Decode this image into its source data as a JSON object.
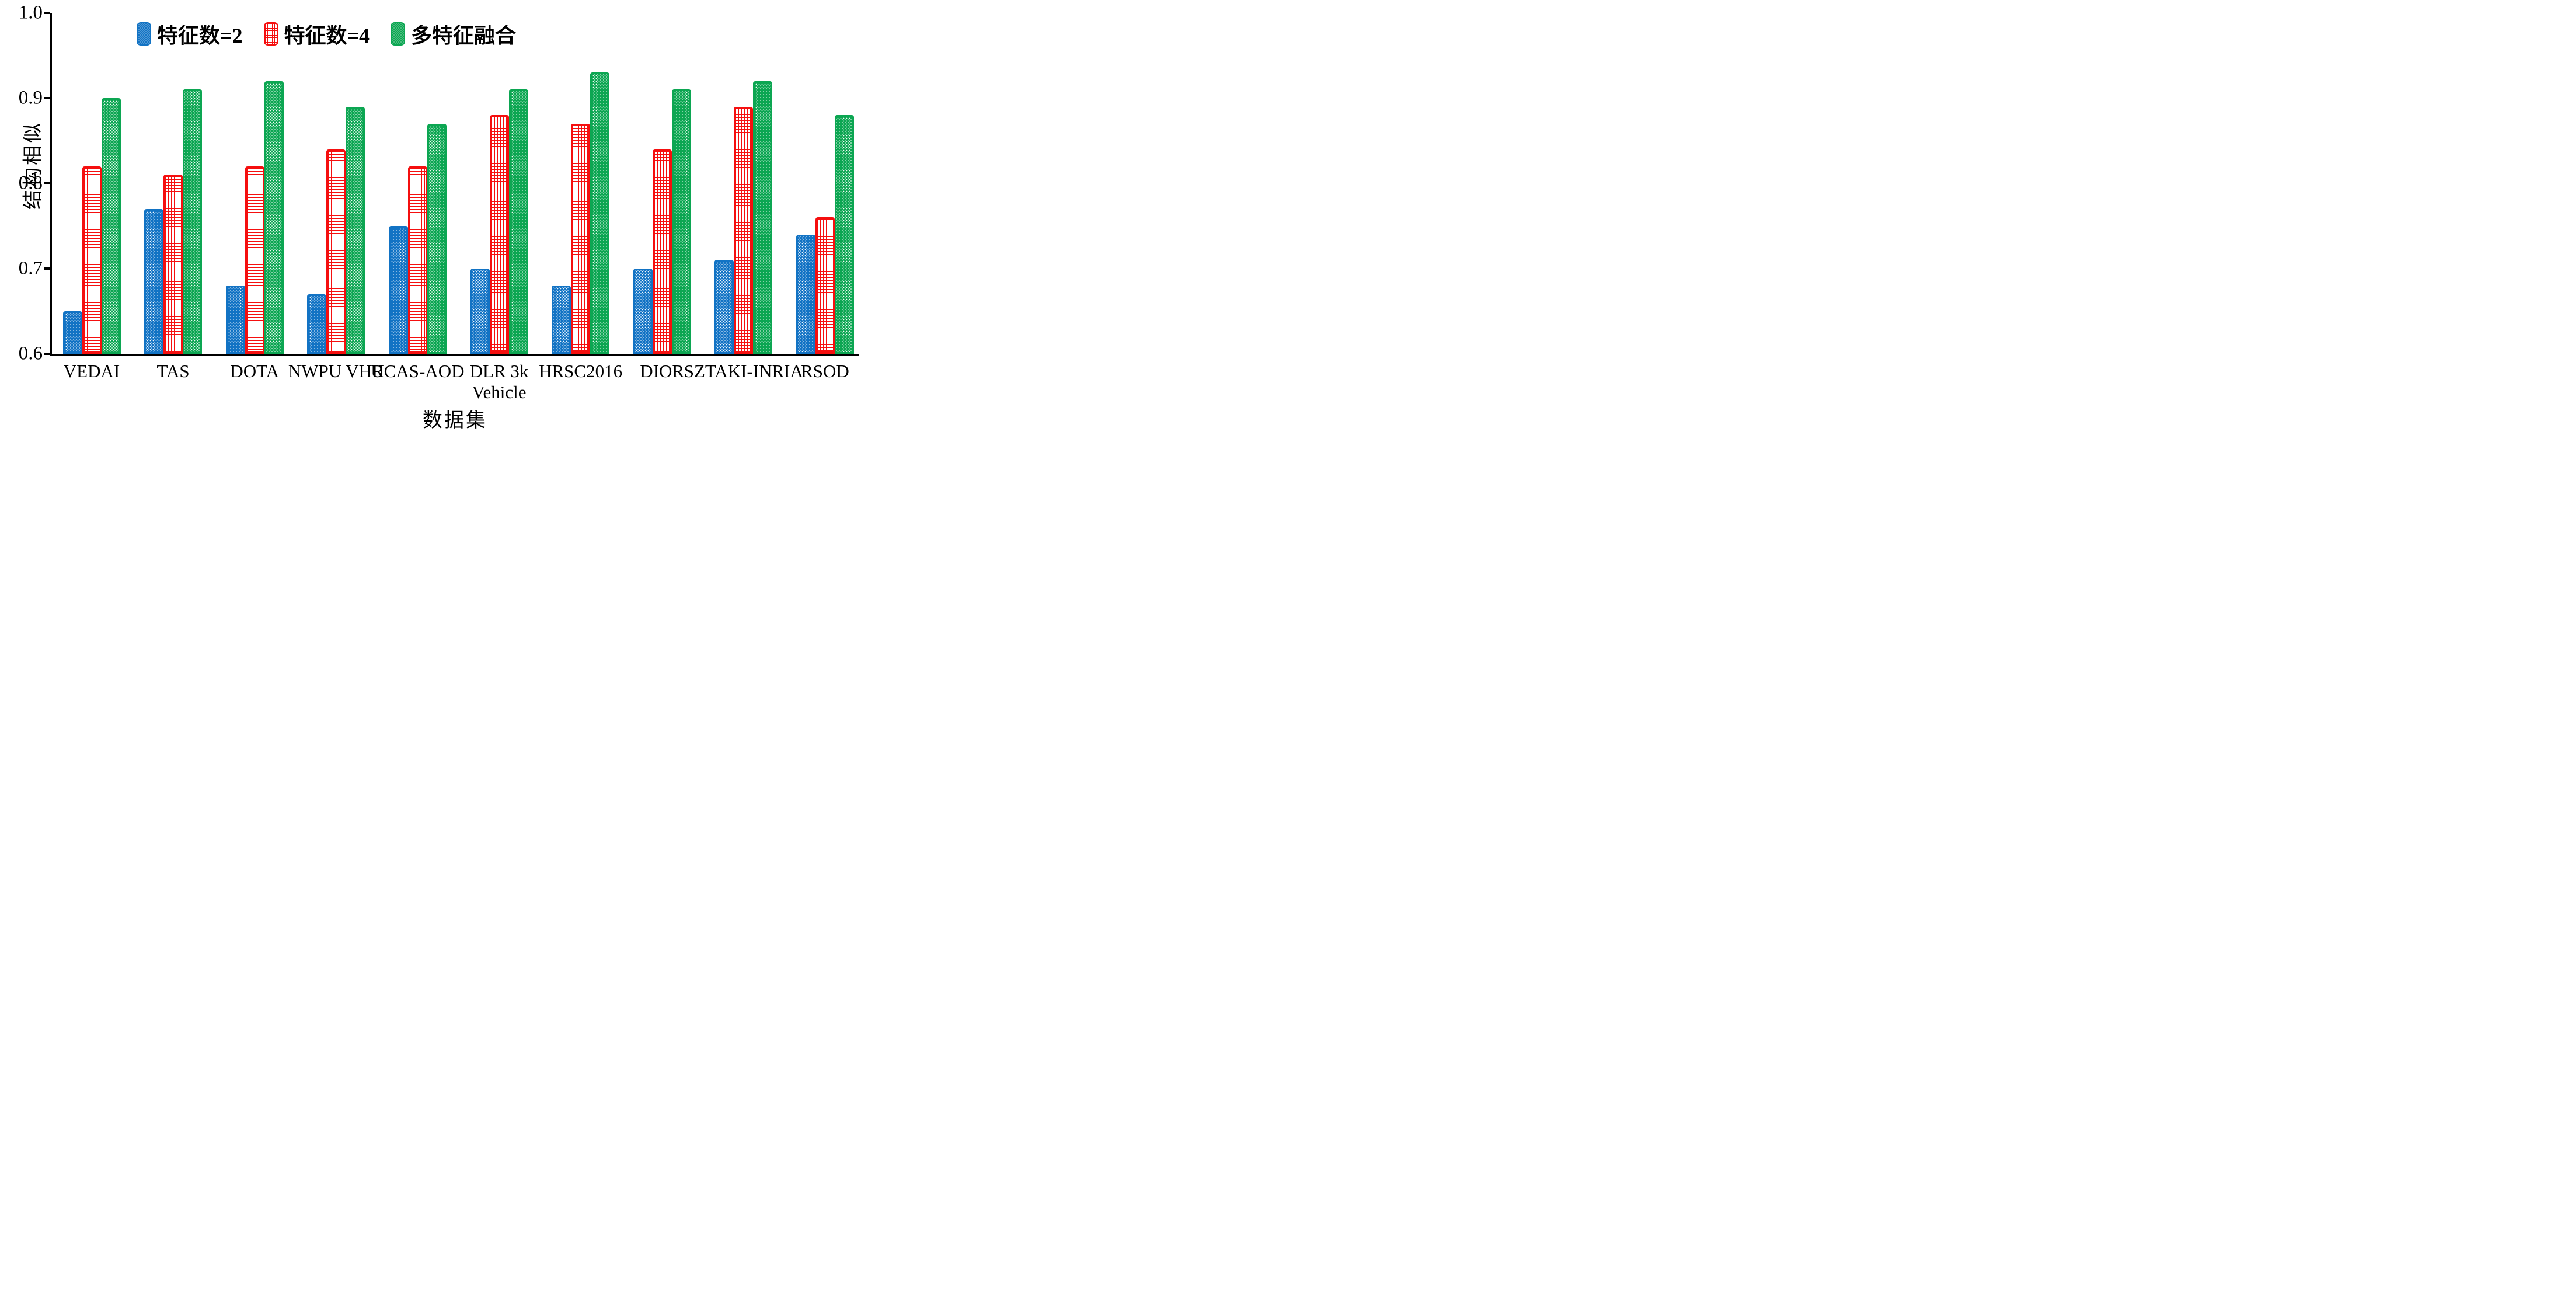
{
  "figure": {
    "background": "#ffffff",
    "colors": {
      "blue": "#1273C4",
      "red": "#F50F0F",
      "green": "#0CA652",
      "axis": "#000000"
    }
  },
  "chart_data": {
    "type": "bar",
    "title": "",
    "xlabel": "数据集",
    "ylabel": "结构相似",
    "ylim": [
      0.6,
      1.0
    ],
    "yticks": [
      "0.6",
      "0.7",
      "0.8",
      "0.9",
      "1.0"
    ],
    "grid": false,
    "legend_position": "top-center",
    "categories": [
      "VEDAI",
      "TAS",
      "DOTA",
      "NWPU VHR",
      "UCAS-AOD",
      "DLR 3k Vehicle",
      "HRSC2016",
      "DIOR",
      "SZTAKI-INRIA",
      "RSOD"
    ],
    "category_display_lines": [
      [
        "VEDAI"
      ],
      [
        "TAS"
      ],
      [
        "DOTA"
      ],
      [
        "NWPU VHR"
      ],
      [
        "UCAS-AOD"
      ],
      [
        "DLR 3k",
        "Vehicle"
      ],
      [
        "HRSC2016"
      ],
      [
        "DIOR"
      ],
      [
        "SZTAKI-INRIA"
      ],
      [
        "RSOD"
      ]
    ],
    "series": [
      {
        "name": "特征数=2",
        "style": "blue-dotted",
        "values": [
          0.65,
          0.77,
          0.68,
          0.67,
          0.75,
          0.7,
          0.68,
          0.7,
          0.71,
          0.74
        ]
      },
      {
        "name": "特征数=4",
        "style": "red-grid-hatch",
        "values": [
          0.82,
          0.81,
          0.82,
          0.84,
          0.82,
          0.88,
          0.87,
          0.84,
          0.89,
          0.76
        ]
      },
      {
        "name": "多特征融合",
        "style": "green-dotted",
        "values": [
          0.9,
          0.91,
          0.92,
          0.89,
          0.87,
          0.91,
          0.93,
          0.91,
          0.92,
          0.88
        ]
      }
    ]
  }
}
